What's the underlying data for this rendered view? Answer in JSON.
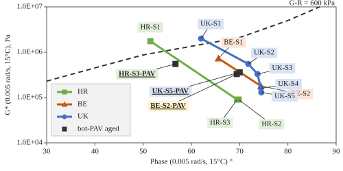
{
  "chart_data": {
    "type": "scatter-line",
    "x_label": "Phase (0.005 rad/s, 15°C) °",
    "y_label": "G* (0.005 rad/s, 15°C), Pa",
    "y_scale": "log",
    "xlim": [
      30,
      90
    ],
    "xticks": [
      30,
      40,
      50,
      60,
      70,
      80,
      90
    ],
    "ylim": [
      10000,
      10000000
    ],
    "yticks": [
      {
        "value": 10000,
        "label": "1.0E+04"
      },
      {
        "value": 100000,
        "label": "1.0E+05"
      },
      {
        "value": 1000000,
        "label": "1.0E+06"
      },
      {
        "value": 10000000,
        "label": "1.0E+07"
      }
    ],
    "legend": "lower left",
    "series": [
      {
        "name": "HR",
        "color": "#70ad47",
        "label_fill": "#e2efda",
        "marker": "square",
        "line": true,
        "x": [
          51.5,
          69.5,
          69.8
        ],
        "values": [
          1750000,
          90000,
          90000
        ],
        "labels": [
          "HR-S1",
          "HR-S3",
          "HR-S2"
        ]
      },
      {
        "name": "BE",
        "color": "#c55a11",
        "label_fill": "#fce4d6",
        "marker": "triangle",
        "line": true,
        "x": [
          65.6,
          74.4
        ],
        "values": [
          730000,
          180000
        ],
        "labels": [
          "BE-S1",
          "BE-S2"
        ]
      },
      {
        "name": "UK",
        "color": "#4472c4",
        "label_fill": "#dae3f3",
        "marker": "circle",
        "line": true,
        "x": [
          62,
          71.8,
          73.7,
          74.4,
          74.5
        ],
        "values": [
          2000000,
          550000,
          330000,
          160000,
          130000
        ],
        "labels": [
          "UK-S1",
          "UK-S2",
          "UK-S3",
          "UK-S4",
          "UK-S5"
        ]
      },
      {
        "name": "bot-PAV aged",
        "color": "#333333",
        "marker": "square",
        "line": false,
        "label_style": "bold",
        "label_fills": [
          "#e2efda",
          "#dae3f3",
          "#fff2cc"
        ],
        "x": [
          56.7,
          70,
          69.4
        ],
        "values": [
          550000,
          360000,
          330000
        ],
        "labels": [
          "HR-S3-PAV",
          "UK-S5-PAV",
          "BE-S2-PAV"
        ]
      }
    ],
    "reference_curve": {
      "name": "G-R = 600 kPa",
      "color": "#333333",
      "x": [
        30,
        40,
        50,
        60,
        70,
        80,
        86.6
      ],
      "values": [
        230000,
        450000,
        870000,
        1350000,
        2100000,
        5000000,
        10000000
      ]
    }
  }
}
